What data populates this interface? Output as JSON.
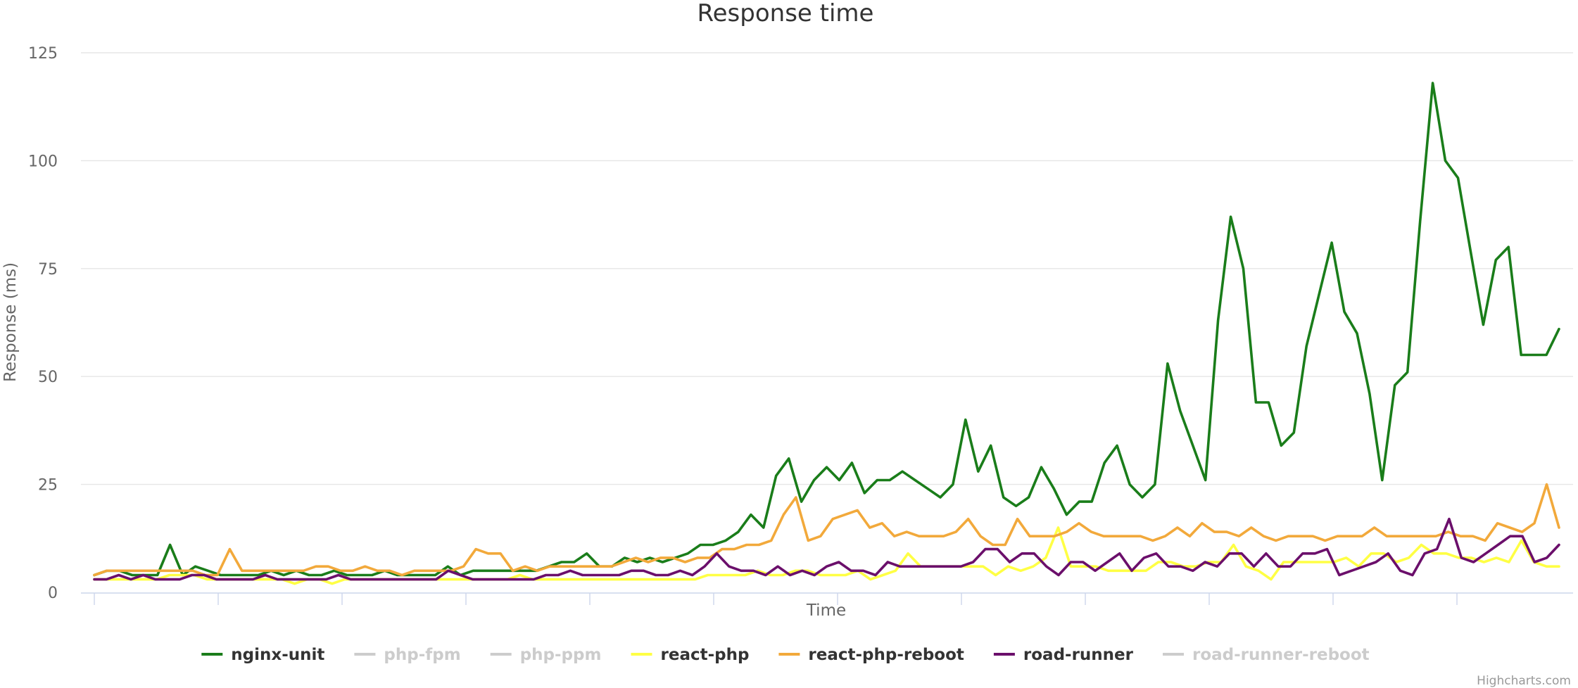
{
  "chart_data": {
    "type": "line",
    "title": "Response time",
    "xlabel": "Time",
    "ylabel": "Response (ms)",
    "ylim": [
      0,
      125
    ],
    "yticks": [
      0,
      25,
      50,
      75,
      100,
      125
    ],
    "x_tick_count": 13,
    "grid": true,
    "legend_position": "bottom-center",
    "credits": "Highcharts.com",
    "series": [
      {
        "name": "nginx-unit",
        "color": "#1a7d1a",
        "visible": true,
        "values": [
          4,
          5,
          5,
          4,
          4,
          4,
          11,
          4,
          6,
          5,
          4,
          4,
          4,
          4,
          5,
          4,
          5,
          4,
          4,
          5,
          4,
          4,
          4,
          5,
          4,
          4,
          4,
          4,
          6,
          4,
          5,
          5,
          5,
          5,
          5,
          5,
          6,
          7,
          7,
          9,
          6,
          6,
          8,
          7,
          8,
          7,
          8,
          9,
          11,
          11,
          12,
          14,
          18,
          15,
          27,
          31,
          21,
          26,
          29,
          26,
          30,
          23,
          26,
          26,
          28,
          26,
          24,
          22,
          25,
          40,
          28,
          34,
          22,
          20,
          22,
          29,
          24,
          18,
          21,
          21,
          30,
          34,
          25,
          22,
          25,
          53,
          42,
          34,
          26,
          63,
          87,
          75,
          44,
          44,
          34,
          37,
          57,
          69,
          81,
          65,
          60,
          46,
          26,
          48,
          51,
          86,
          118,
          100,
          96,
          79,
          62,
          77,
          80,
          55,
          55,
          55,
          61
        ]
      },
      {
        "name": "php-fpm",
        "color": "#cccccc",
        "visible": false,
        "values": []
      },
      {
        "name": "php-ppm",
        "color": "#cccccc",
        "visible": false,
        "values": []
      },
      {
        "name": "react-php",
        "color": "#ffff44",
        "visible": true,
        "values": [
          3,
          3,
          3,
          3,
          3,
          3,
          4,
          4,
          4,
          3,
          3,
          3,
          3,
          3,
          3,
          3,
          2,
          3,
          3,
          2,
          3,
          3,
          3,
          3,
          3,
          3,
          3,
          3,
          3,
          3,
          3,
          3,
          3,
          3,
          4,
          3,
          3,
          3,
          3,
          3,
          3,
          3,
          3,
          3,
          3,
          3,
          3,
          3,
          3,
          4,
          4,
          4,
          4,
          5,
          4,
          4,
          5,
          5,
          4,
          4,
          4,
          5,
          3,
          4,
          5,
          9,
          6,
          6,
          6,
          6,
          6,
          6,
          4,
          6,
          5,
          6,
          8,
          15,
          6,
          6,
          6,
          5,
          5,
          5,
          5,
          7,
          7,
          6,
          6,
          7,
          7,
          11,
          6,
          5,
          3,
          7,
          7,
          7,
          7,
          7,
          8,
          6,
          9,
          9,
          7,
          8,
          11,
          9,
          9,
          8,
          8,
          7,
          8,
          7,
          12,
          7,
          6,
          6
        ]
      },
      {
        "name": "react-php-reboot",
        "color": "#f2a93b",
        "visible": true,
        "values": [
          4,
          5,
          5,
          5,
          5,
          5,
          5,
          5,
          5,
          4,
          4,
          10,
          5,
          5,
          5,
          5,
          5,
          5,
          6,
          6,
          5,
          5,
          6,
          5,
          5,
          4,
          5,
          5,
          5,
          5,
          6,
          10,
          9,
          9,
          5,
          6,
          5,
          6,
          6,
          6,
          6,
          6,
          6,
          7,
          8,
          7,
          8,
          8,
          7,
          8,
          8,
          10,
          10,
          11,
          11,
          12,
          18,
          22,
          12,
          13,
          17,
          18,
          19,
          15,
          16,
          13,
          14,
          13,
          13,
          13,
          14,
          17,
          13,
          11,
          11,
          17,
          13,
          13,
          13,
          14,
          16,
          14,
          13,
          13,
          13,
          13,
          12,
          13,
          15,
          13,
          16,
          14,
          14,
          13,
          15,
          13,
          12,
          13,
          13,
          13,
          12,
          13,
          13,
          13,
          15,
          13,
          13,
          13,
          13,
          13,
          14,
          13,
          13,
          12,
          16,
          15,
          14,
          16,
          25,
          15
        ]
      },
      {
        "name": "road-runner",
        "color": "#6b0f6b",
        "visible": true,
        "values": [
          3,
          3,
          4,
          3,
          4,
          3,
          3,
          3,
          4,
          4,
          3,
          3,
          3,
          3,
          4,
          3,
          3,
          3,
          3,
          3,
          4,
          3,
          3,
          3,
          3,
          3,
          3,
          3,
          3,
          5,
          4,
          3,
          3,
          3,
          3,
          3,
          3,
          4,
          4,
          5,
          4,
          4,
          4,
          4,
          5,
          5,
          4,
          4,
          5,
          4,
          6,
          9,
          6,
          5,
          5,
          4,
          6,
          4,
          5,
          4,
          6,
          7,
          5,
          5,
          4,
          7,
          6,
          6,
          6,
          6,
          6,
          6,
          7,
          10,
          10,
          7,
          9,
          9,
          6,
          4,
          7,
          7,
          5,
          7,
          9,
          5,
          8,
          9,
          6,
          6,
          5,
          7,
          6,
          9,
          9,
          6,
          9,
          6,
          6,
          9,
          9,
          10,
          4,
          5,
          6,
          7,
          9,
          5,
          4,
          9,
          10,
          17,
          8,
          7,
          9,
          11,
          13,
          13,
          7,
          8,
          11
        ]
      },
      {
        "name": "road-runner-reboot",
        "color": "#cccccc",
        "visible": false,
        "values": []
      }
    ]
  }
}
